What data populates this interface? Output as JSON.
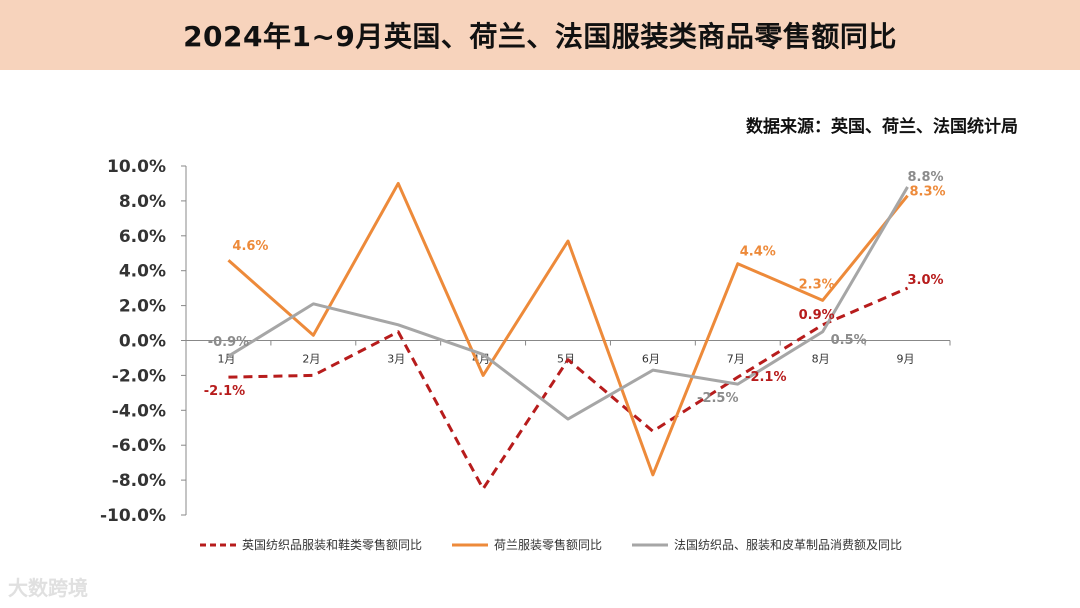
{
  "header": {
    "title": "2024年1~9月英国、荷兰、法国服装类商品零售额同比",
    "source": "数据来源：英国、荷兰、法国统计局"
  },
  "watermark": "大数跨境",
  "chart_data": {
    "type": "line",
    "title": "2024年1~9月英国、荷兰、法国服装类商品零售额同比",
    "categories": [
      "1月",
      "2月",
      "3月",
      "4月",
      "5月",
      "6月",
      "7月",
      "8月",
      "9月"
    ],
    "ylim": [
      -10,
      10
    ],
    "y_ticks": [
      "10.0%",
      "8.0%",
      "6.0%",
      "4.0%",
      "2.0%",
      "0.0%",
      "-2.0%",
      "-4.0%",
      "-6.0%",
      "-8.0%",
      "-10.0%"
    ],
    "grid": false,
    "legend_position": "bottom",
    "series": [
      {
        "name": "英国纺织品服装和鞋类零售额同比",
        "color": "#b71c1c",
        "style": "dashed",
        "values": [
          -2.1,
          -2.0,
          0.5,
          -8.5,
          -1.1,
          -5.2,
          -2.1,
          0.9,
          3.0
        ],
        "labels": [
          "-2.1%",
          "",
          "",
          "",
          "",
          "",
          "-2.1%",
          "0.9%",
          "3.0%"
        ]
      },
      {
        "name": "荷兰服装零售额同比",
        "color": "#ed8a3a",
        "style": "solid",
        "values": [
          4.6,
          0.3,
          9.0,
          -2.0,
          5.7,
          -7.7,
          4.4,
          2.3,
          8.3
        ],
        "labels": [
          "4.6%",
          "",
          "",
          "",
          "",
          "",
          "4.4%",
          "2.3%",
          "8.3%"
        ]
      },
      {
        "name": "法国纺织品、服装和皮革制品消费额及同比",
        "color": "#a6a6a6",
        "style": "solid",
        "values": [
          -0.9,
          2.1,
          0.9,
          -0.8,
          -4.5,
          -1.7,
          -2.5,
          0.5,
          8.8
        ],
        "labels": [
          "-0.9%",
          "",
          "",
          "",
          "",
          "",
          "-2.5%",
          "0.5%",
          "8.8%"
        ]
      }
    ]
  }
}
